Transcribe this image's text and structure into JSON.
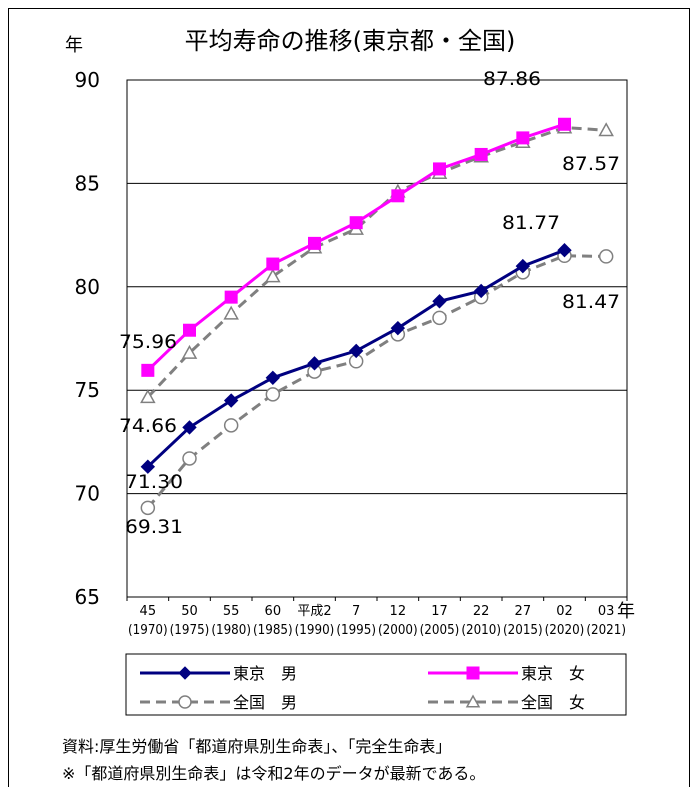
{
  "chart_data": {
    "type": "line",
    "title": "平均寿命の推移(東京都・全国)",
    "y_unit": "年",
    "x_unit": "年",
    "ylim": [
      65,
      90
    ],
    "yticks": [
      "65",
      "70",
      "75",
      "80",
      "85",
      "90"
    ],
    "grid": true,
    "categories": [
      {
        "top": "45",
        "bottom": "(1970)"
      },
      {
        "top": "50",
        "bottom": "(1975)"
      },
      {
        "top": "55",
        "bottom": "(1980)"
      },
      {
        "top": "60",
        "bottom": "(1985)"
      },
      {
        "top": "平成2",
        "bottom": "(1990)"
      },
      {
        "top": "7",
        "bottom": "(1995)"
      },
      {
        "top": "12",
        "bottom": "(2000)"
      },
      {
        "top": "17",
        "bottom": "(2005)"
      },
      {
        "top": "22",
        "bottom": "(2010)"
      },
      {
        "top": "27",
        "bottom": "(2015)"
      },
      {
        "top": "02",
        "bottom": "(2020)"
      },
      {
        "top": "03",
        "bottom": "(2021)"
      }
    ],
    "series": [
      {
        "name": "東京　男",
        "color": "#000080",
        "marker": "diamond",
        "dash": false,
        "values": [
          71.3,
          73.2,
          74.5,
          75.6,
          76.3,
          76.9,
          78.0,
          79.3,
          79.8,
          81.0,
          81.77,
          null
        ]
      },
      {
        "name": "東京　女",
        "color": "#ff00ff",
        "marker": "square",
        "dash": false,
        "values": [
          75.96,
          77.9,
          79.5,
          81.1,
          82.1,
          83.1,
          84.4,
          85.7,
          86.4,
          87.2,
          87.86,
          null
        ]
      },
      {
        "name": "全国　男",
        "color": "#808080",
        "marker": "circle",
        "dash": true,
        "values": [
          69.31,
          71.7,
          73.3,
          74.8,
          75.9,
          76.4,
          77.7,
          78.5,
          79.5,
          80.7,
          81.5,
          81.47
        ]
      },
      {
        "name": "全国　女",
        "color": "#808080",
        "marker": "triangle",
        "dash": true,
        "values": [
          74.66,
          76.8,
          78.7,
          80.5,
          81.9,
          82.8,
          84.6,
          85.5,
          86.3,
          87.0,
          87.7,
          87.57
        ]
      }
    ],
    "data_labels": [
      {
        "text": "75.96"
      },
      {
        "text": "74.66"
      },
      {
        "text": "71.30"
      },
      {
        "text": "69.31"
      },
      {
        "text": "87.86"
      },
      {
        "text": "87.57"
      },
      {
        "text": "81.77"
      },
      {
        "text": "81.47"
      }
    ]
  },
  "source_note": "資料:厚生労働省「都道府県別生命表」、「完全生命表」",
  "footnote": "※「都道府県別生命表」は令和2年のデータが最新である。"
}
